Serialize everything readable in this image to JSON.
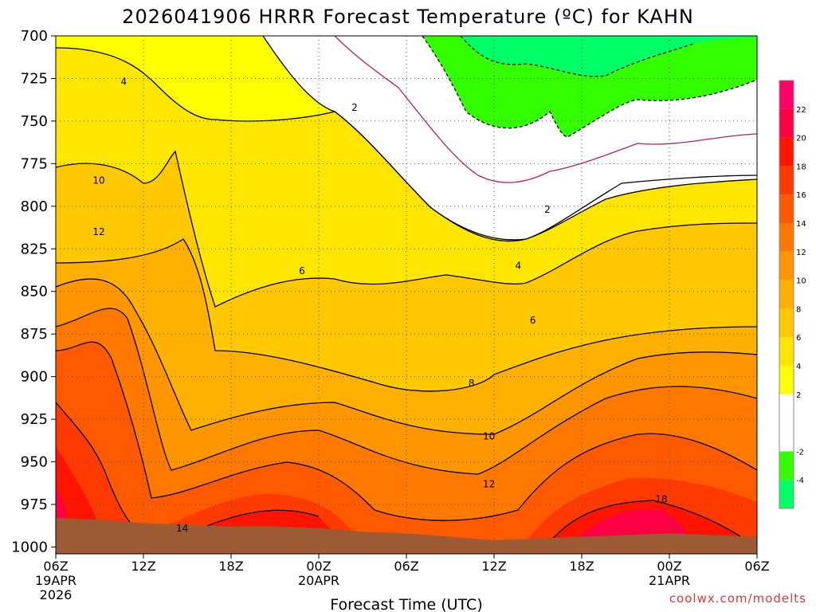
{
  "chart_data": {
    "type": "heatmap",
    "title": "2026041906 HRRR Forecast Temperature (ºC) for KAHN",
    "xlabel": "Forecast Time (UTC)",
    "ylabel": "",
    "x_ticks": [
      {
        "hour": 0,
        "label": "06Z",
        "sub1": "19APR",
        "sub2": "2026"
      },
      {
        "hour": 6,
        "label": "12Z",
        "sub1": "",
        "sub2": ""
      },
      {
        "hour": 12,
        "label": "18Z",
        "sub1": "",
        "sub2": ""
      },
      {
        "hour": 18,
        "label": "00Z",
        "sub1": "20APR",
        "sub2": ""
      },
      {
        "hour": 24,
        "label": "06Z",
        "sub1": "",
        "sub2": ""
      },
      {
        "hour": 30,
        "label": "12Z",
        "sub1": "",
        "sub2": ""
      },
      {
        "hour": 36,
        "label": "18Z",
        "sub1": "",
        "sub2": ""
      },
      {
        "hour": 42,
        "label": "00Z",
        "sub1": "21APR",
        "sub2": ""
      },
      {
        "hour": 48,
        "label": "06Z",
        "sub1": "",
        "sub2": ""
      }
    ],
    "xlim_hours": [
      0,
      48
    ],
    "y_ticks": [
      "700",
      "725",
      "750",
      "775",
      "800",
      "825",
      "850",
      "875",
      "900",
      "925",
      "950",
      "975",
      "1000"
    ],
    "y_values": [
      700,
      725,
      750,
      775,
      800,
      825,
      850,
      875,
      900,
      925,
      950,
      975,
      1000
    ],
    "ylim": [
      700,
      1004
    ],
    "y_inverted": true,
    "grid": true,
    "colorbar": {
      "position": "right",
      "levels": [
        -6,
        -4,
        -2,
        0,
        2,
        4,
        6,
        8,
        10,
        12,
        14,
        16,
        18,
        20,
        22,
        24
      ],
      "tick_labels": [
        "-4",
        "-2",
        "2",
        "4",
        "6",
        "8",
        "10",
        "12",
        "14",
        "16",
        "18",
        "20",
        "22"
      ],
      "colors": [
        "#00ff66",
        "#33ff00",
        "#ffffff",
        "#ffffff",
        "#ffff00",
        "#ffe600",
        "#ffc800",
        "#ffb000",
        "#ff9600",
        "#ff7800",
        "#ff5a00",
        "#ff3a00",
        "#ff1400",
        "#ff0044",
        "#ff0066"
      ]
    },
    "contour_labels": [
      {
        "text": "4",
        "hour": 4.0,
        "pressure": 727
      },
      {
        "text": "2",
        "hour": 19.8,
        "pressure": 742
      },
      {
        "text": "2",
        "hour": 33.0,
        "pressure": 802
      },
      {
        "text": "10",
        "hour": 0.0,
        "pressure": 785
      },
      {
        "text": "12",
        "hour": 0.0,
        "pressure": 815
      },
      {
        "text": "6",
        "hour": 16.2,
        "pressure": 838
      },
      {
        "text": "4",
        "hour": 31.0,
        "pressure": 835
      },
      {
        "text": "6",
        "hour": 32.0,
        "pressure": 867
      },
      {
        "text": "8",
        "hour": 27.8,
        "pressure": 904
      },
      {
        "text": "10",
        "hour": 29.0,
        "pressure": 935
      },
      {
        "text": "12",
        "hour": 29.0,
        "pressure": 963
      },
      {
        "text": "14",
        "hour": 8.0,
        "pressure": 989
      },
      {
        "text": "18",
        "hour": 40.8,
        "pressure": 972
      }
    ],
    "surface_pressure": [
      {
        "hour": 0,
        "p": 983
      },
      {
        "hour": 3,
        "p": 984
      },
      {
        "hour": 6,
        "p": 986
      },
      {
        "hour": 9,
        "p": 987
      },
      {
        "hour": 12,
        "p": 988
      },
      {
        "hour": 15,
        "p": 988
      },
      {
        "hour": 18,
        "p": 989
      },
      {
        "hour": 21,
        "p": 991
      },
      {
        "hour": 24,
        "p": 992
      },
      {
        "hour": 27,
        "p": 994
      },
      {
        "hour": 30,
        "p": 996
      },
      {
        "hour": 33,
        "p": 995
      },
      {
        "hour": 36,
        "p": 994
      },
      {
        "hour": 39,
        "p": 993
      },
      {
        "hour": 42,
        "p": 992
      },
      {
        "hour": 45,
        "p": 993
      },
      {
        "hour": 48,
        "p": 994
      }
    ],
    "credit": "coolwx.com/modelts"
  }
}
